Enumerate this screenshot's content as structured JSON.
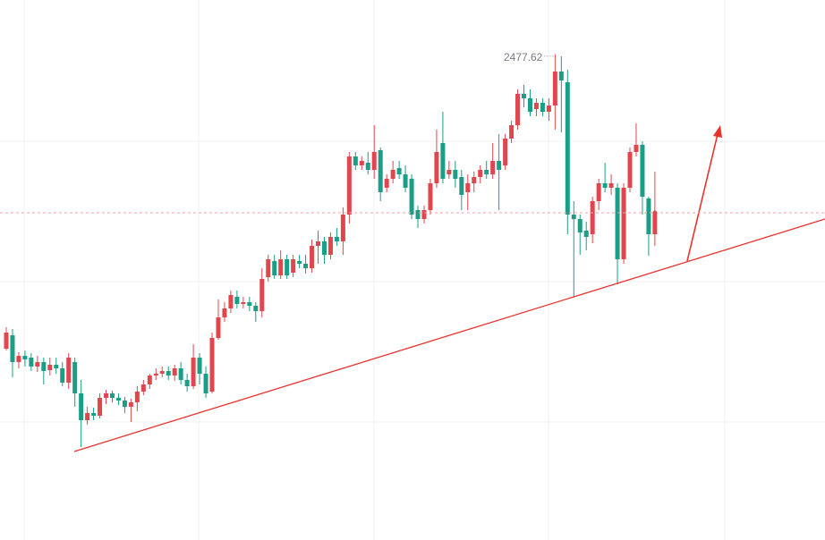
{
  "chart_data": {
    "type": "candlestick",
    "ylim": [
      2206,
      2508
    ],
    "up_color": "#e0464d",
    "down_color": "#1a9e86",
    "series": {
      "open": [
        2313,
        2320.5,
        2305.5,
        2309,
        2308,
        2303,
        2305.5,
        2301,
        2304,
        2302,
        2294,
        2305.5,
        2288,
        2273,
        2277,
        2275.5,
        2285.5,
        2288,
        2285.5,
        2284,
        2280.5,
        2283,
        2289,
        2293,
        2298,
        2299,
        2300.5,
        2298,
        2302,
        2295.5,
        2292,
        2308,
        2299,
        2289,
        2319,
        2330.5,
        2335.5,
        2342,
        2338,
        2339,
        2337,
        2334,
        2353,
        2362,
        2354,
        2363,
        2355.5,
        2362,
        2360.5,
        2358,
        2370.5,
        2373,
        2365.5,
        2375.5,
        2373,
        2388,
        2420.5,
        2415.5,
        2417,
        2413,
        2424,
        2403,
        2408,
        2414,
        2410.5,
        2408,
        2390.5,
        2385.5,
        2390.5,
        2405.5,
        2428,
        2410.5,
        2413,
        2409,
        2400.5,
        2405.5,
        2409,
        2413,
        2410.5,
        2418,
        2415.5,
        2430.5,
        2438,
        2455.5,
        2453,
        2447,
        2450.5,
        2445.5,
        2449,
        2468,
        2462,
        2388,
        2385.5,
        2379,
        2377,
        2395.5,
        2405.5,
        2403,
        2403,
        2363,
        2403,
        2423,
        2427,
        2397,
        2377
      ],
      "high": [
        2325,
        2324,
        2311,
        2312,
        2310.5,
        2309,
        2308,
        2308,
        2308,
        2305.5,
        2310.5,
        2308,
        2295.5,
        2280.5,
        2280,
        2288,
        2290,
        2289.5,
        2288,
        2286,
        2285,
        2292,
        2295.5,
        2299,
        2302,
        2303,
        2303,
        2304,
        2305.5,
        2299,
        2315.5,
        2310.5,
        2303,
        2322,
        2340.5,
        2339,
        2345.5,
        2345.5,
        2342,
        2342,
        2339,
        2358,
        2365.5,
        2365.5,
        2368,
        2365.5,
        2365.5,
        2365.5,
        2365.5,
        2374,
        2379,
        2375.5,
        2378,
        2380.5,
        2392,
        2423,
        2423,
        2420.5,
        2423,
        2438,
        2425.5,
        2410.5,
        2418,
        2418,
        2415.5,
        2410.5,
        2393,
        2393,
        2408,
        2435.5,
        2445.5,
        2418,
        2418,
        2413,
        2410.5,
        2412,
        2415.5,
        2418,
        2428,
        2433,
        2433,
        2440.5,
        2458,
        2460.5,
        2458,
        2453,
        2453,
        2453,
        2477.62,
        2476.5,
        2469,
        2395.5,
        2388,
        2384,
        2398,
        2408,
        2417,
        2410.5,
        2405.5,
        2405.5,
        2425.5,
        2439,
        2429,
        2398,
        2412
      ],
      "low": [
        2312,
        2297,
        2302,
        2303,
        2300.5,
        2300,
        2293,
        2298,
        2299,
        2292,
        2290.5,
        2280.5,
        2258,
        2270.5,
        2273,
        2274,
        2282,
        2283,
        2281.5,
        2277,
        2272,
        2278,
        2287,
        2290.5,
        2295.5,
        2297,
        2295.5,
        2295,
        2293,
        2289,
        2290.5,
        2293,
        2285.5,
        2288,
        2318,
        2328,
        2333,
        2335.5,
        2335.5,
        2334,
        2328,
        2330.5,
        2350.5,
        2352,
        2352,
        2352,
        2353,
        2358,
        2355,
        2355.5,
        2360.5,
        2360.5,
        2363,
        2370.5,
        2365.5,
        2383,
        2413,
        2413,
        2410.5,
        2408,
        2395.5,
        2400.5,
        2405.5,
        2408,
        2400.5,
        2385.5,
        2380.5,
        2383,
        2388,
        2403,
        2405.5,
        2408,
        2403,
        2390.5,
        2390.5,
        2400.5,
        2405.5,
        2408,
        2408,
        2390.5,
        2413,
        2428,
        2435.5,
        2448,
        2443,
        2443,
        2443,
        2440.5,
        2435.5,
        2434,
        2377,
        2342,
        2365.5,
        2368,
        2372,
        2390.5,
        2400.5,
        2399,
        2349,
        2360.5,
        2400.5,
        2420.5,
        2388,
        2365,
        2370.5
      ],
      "close": [
        2322,
        2305.5,
        2309,
        2307,
        2303,
        2305.5,
        2300.5,
        2304,
        2302,
        2294,
        2308,
        2288,
        2273,
        2277,
        2275.5,
        2285.5,
        2288,
        2285.5,
        2284,
        2280.5,
        2283,
        2289,
        2293,
        2298,
        2299,
        2300.5,
        2298,
        2302,
        2295.5,
        2292,
        2308,
        2299,
        2288,
        2319,
        2330.5,
        2335.5,
        2343,
        2338,
        2339,
        2337,
        2334,
        2352,
        2363,
        2354,
        2363,
        2354,
        2363,
        2360.5,
        2358,
        2370.5,
        2373,
        2365.5,
        2375.5,
        2373,
        2388,
        2420.5,
        2415.5,
        2418,
        2413,
        2423,
        2400.5,
        2408,
        2413,
        2410.5,
        2403,
        2388,
        2385.5,
        2390.5,
        2405.5,
        2423,
        2408,
        2413,
        2408,
        2399,
        2405.5,
        2409,
        2413,
        2410.5,
        2418,
        2413,
        2430.5,
        2438,
        2455.5,
        2453,
        2445.5,
        2450.5,
        2445.5,
        2449,
        2468,
        2463,
        2388,
        2385.5,
        2378,
        2375.5,
        2395.5,
        2405.5,
        2403,
        2405.5,
        2363,
        2403,
        2423,
        2427,
        2398,
        2377,
        2389
      ]
    }
  }
}
